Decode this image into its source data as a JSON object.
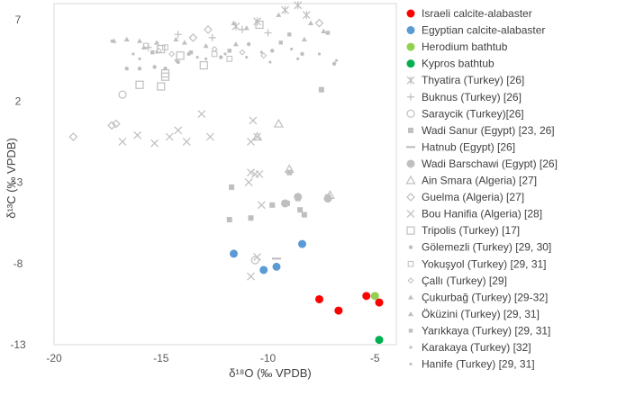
{
  "chart_data": {
    "type": "scatter",
    "title": "",
    "xlabel": "δ¹⁸O (‰ VPDB)",
    "ylabel": "δ¹³C (‰ VPDB)",
    "xlim": [
      -20,
      -4
    ],
    "ylim": [
      -13,
      8
    ],
    "xticks": [
      -20,
      -15,
      -10,
      -5
    ],
    "yticks": [
      7,
      2,
      -3,
      -8,
      -13
    ],
    "grid": false,
    "legend_position": "right",
    "series": [
      {
        "name": "Israeli calcite-alabaster",
        "marker": "circle-filled",
        "color": "#ff0000",
        "points": [
          [
            -7.6,
            -10.2
          ],
          [
            -6.7,
            -10.9
          ],
          [
            -5.4,
            -10.0
          ],
          [
            -4.8,
            -10.4
          ]
        ]
      },
      {
        "name": "Egyptian calcite-alabaster",
        "marker": "circle-filled",
        "color": "#5b9bd5",
        "points": [
          [
            -11.6,
            -7.4
          ],
          [
            -10.2,
            -8.4
          ],
          [
            -9.6,
            -8.2
          ],
          [
            -8.4,
            -6.8
          ]
        ]
      },
      {
        "name": "Herodium bathtub",
        "marker": "circle-filled",
        "color": "#92d050",
        "points": [
          [
            -5.0,
            -10.0
          ]
        ]
      },
      {
        "name": "Kypros bathtub",
        "marker": "circle-filled",
        "color": "#00b050",
        "points": [
          [
            -4.8,
            -12.7
          ]
        ]
      },
      {
        "name": "Thyatira (Turkey) [26]",
        "marker": "asterisk",
        "color": "#bfbfbf",
        "points": [
          [
            -11.5,
            6.6
          ],
          [
            -9.2,
            7.6
          ],
          [
            -8.2,
            7.3
          ],
          [
            -8.6,
            7.9
          ],
          [
            -10.5,
            6.9
          ]
        ]
      },
      {
        "name": "Buknus (Turkey) [26]",
        "marker": "plus",
        "color": "#bfbfbf",
        "points": [
          [
            -15.6,
            5.3
          ],
          [
            -14.2,
            6.1
          ],
          [
            -12.6,
            5.9
          ],
          [
            -11.2,
            6.4
          ],
          [
            -10.0,
            6.2
          ]
        ]
      },
      {
        "name": "Saraycik (Turkey)[26]",
        "marker": "circle-open",
        "color": "#bfbfbf",
        "points": [
          [
            -16.8,
            2.4
          ],
          [
            -10.6,
            -7.8
          ]
        ]
      },
      {
        "name": "Wadi Sanur (Egypt) [23, 26]",
        "marker": "square-filled",
        "color": "#bfbfbf",
        "points": [
          [
            -11.7,
            -3.3
          ],
          [
            -11.8,
            -5.3
          ],
          [
            -10.8,
            -5.2
          ],
          [
            -9.8,
            -4.4
          ],
          [
            -9.1,
            -4.3
          ],
          [
            -8.6,
            -4.0
          ],
          [
            -8.5,
            -4.7
          ],
          [
            -8.3,
            -5.0
          ],
          [
            -9.0,
            -2.4
          ],
          [
            -7.5,
            2.7
          ],
          [
            -7.2,
            -3.9
          ]
        ]
      },
      {
        "name": "Hatnub (Egypt) [26]",
        "marker": "dash",
        "color": "#bfbfbf",
        "points": [
          [
            -9.6,
            -7.7
          ]
        ]
      },
      {
        "name": "Wadi Barschawi (Egypt) [26]",
        "marker": "circle-filled",
        "color": "#bfbfbf",
        "points": [
          [
            -9.2,
            -4.3
          ],
          [
            -8.6,
            -3.9
          ],
          [
            -7.2,
            -4.0
          ]
        ]
      },
      {
        "name": "Ain Smara (Algeria) [27]",
        "marker": "triangle-open",
        "color": "#bfbfbf",
        "points": [
          [
            -10.5,
            -0.2
          ],
          [
            -9.5,
            0.6
          ],
          [
            -9.0,
            -2.2
          ],
          [
            -7.1,
            -3.8
          ]
        ]
      },
      {
        "name": "Guelma (Algeria) [27]",
        "marker": "diamond-open",
        "color": "#bfbfbf",
        "points": [
          [
            -19.1,
            -0.2
          ],
          [
            -17.3,
            0.5
          ],
          [
            -17.1,
            0.6
          ],
          [
            -13.5,
            5.9
          ],
          [
            -12.8,
            6.4
          ],
          [
            -7.6,
            6.8
          ]
        ]
      },
      {
        "name": "Bou Hanifia (Algeria) [28]",
        "marker": "x",
        "color": "#bfbfbf",
        "points": [
          [
            -16.8,
            -0.5
          ],
          [
            -16.1,
            -0.1
          ],
          [
            -15.3,
            -0.6
          ],
          [
            -14.6,
            -0.2
          ],
          [
            -14.2,
            0.2
          ],
          [
            -13.8,
            -0.5
          ],
          [
            -13.1,
            1.2
          ],
          [
            -12.7,
            -0.2
          ],
          [
            -10.8,
            -0.5
          ],
          [
            -10.7,
            0.8
          ],
          [
            -10.5,
            -0.2
          ],
          [
            -10.8,
            -2.4
          ],
          [
            -10.6,
            -2.5
          ],
          [
            -10.4,
            -2.5
          ],
          [
            -10.9,
            -3.0
          ],
          [
            -10.3,
            -4.4
          ],
          [
            -10.8,
            -8.8
          ],
          [
            -10.5,
            -7.6
          ]
        ]
      },
      {
        "name": "Tripolis (Turkey) [17]",
        "marker": "square-open",
        "color": "#bfbfbf",
        "points": [
          [
            -16.0,
            3.0
          ],
          [
            -15.0,
            2.9
          ],
          [
            -14.8,
            3.5
          ],
          [
            -14.8,
            3.7
          ],
          [
            -13.0,
            4.2
          ],
          [
            -15.0,
            5.2
          ],
          [
            -14.1,
            4.8
          ],
          [
            -10.4,
            6.7
          ]
        ]
      },
      {
        "name": "Gölemezli (Turkey) [29, 30]",
        "marker": "circle-small",
        "color": "#bfbfbf",
        "points": [
          [
            -16.6,
            4.0
          ],
          [
            -16.0,
            4.0
          ],
          [
            -15.3,
            4.1
          ],
          [
            -14.8,
            4.0
          ],
          [
            -14.2,
            4.4
          ],
          [
            -13.7,
            4.9
          ],
          [
            -12.2,
            4.7
          ],
          [
            -8.4,
            4.9
          ],
          [
            -6.9,
            4.3
          ],
          [
            -9.8,
            5.1
          ],
          [
            -10.9,
            5.5
          ]
        ]
      },
      {
        "name": "Yokuşyol (Turkey) [29, 31]",
        "marker": "square-open-small",
        "color": "#bfbfbf",
        "points": [
          [
            -15.7,
            5.4
          ],
          [
            -14.8,
            5.3
          ],
          [
            -12.5,
            4.9
          ],
          [
            -11.8,
            4.6
          ]
        ]
      },
      {
        "name": "Çallı (Turkey) [29]",
        "marker": "diamond-small",
        "color": "#bfbfbf",
        "points": [
          [
            -15.1,
            5.1
          ],
          [
            -14.5,
            4.9
          ],
          [
            -12.5,
            5.2
          ],
          [
            -11.2,
            5.0
          ],
          [
            -10.2,
            4.8
          ]
        ]
      },
      {
        "name": "Çukurbağ (Turkey) [29-32]",
        "marker": "triangle-small",
        "color": "#bfbfbf",
        "points": [
          [
            -17.2,
            5.7
          ],
          [
            -16.6,
            5.8
          ],
          [
            -16.0,
            5.7
          ],
          [
            -15.2,
            5.6
          ],
          [
            -14.3,
            5.8
          ],
          [
            -11.6,
            6.8
          ],
          [
            -11.0,
            6.5
          ],
          [
            -9.5,
            7.3
          ],
          [
            -8.0,
            6.8
          ],
          [
            -7.4,
            6.3
          ]
        ]
      },
      {
        "name": "Öküzini (Turkey) [29, 31]",
        "marker": "triangle-small",
        "color": "#bfbfbf",
        "points": [
          [
            -15.8,
            5.3
          ],
          [
            -13.9,
            5.6
          ],
          [
            -12.9,
            5.4
          ],
          [
            -11.5,
            5.5
          ],
          [
            -8.3,
            5.8
          ]
        ]
      },
      {
        "name": "Yarıkkaya (Turkey) [29, 31]",
        "marker": "square-small",
        "color": "#bfbfbf",
        "points": [
          [
            -15.4,
            5.0
          ],
          [
            -13.6,
            5.0
          ],
          [
            -11.8,
            5.1
          ],
          [
            -9.0,
            6.1
          ],
          [
            -7.2,
            6.2
          ],
          [
            -9.4,
            5.6
          ]
        ]
      },
      {
        "name": "Karakaya (Turkey) [32]",
        "marker": "dot",
        "color": "#bfbfbf",
        "points": [
          [
            -17.3,
            5.7
          ],
          [
            -16.3,
            4.9
          ],
          [
            -15.2,
            5.0
          ],
          [
            -13.3,
            4.7
          ],
          [
            -12.0,
            4.9
          ],
          [
            -10.3,
            5.0
          ],
          [
            -8.6,
            4.6
          ],
          [
            -6.8,
            4.5
          ]
        ]
      },
      {
        "name": "Hanife (Turkey) [29, 31]",
        "marker": "dot",
        "color": "#bfbfbf",
        "points": [
          [
            -16.0,
            4.6
          ],
          [
            -14.3,
            4.5
          ],
          [
            -12.9,
            4.6
          ],
          [
            -11.0,
            4.7
          ],
          [
            -9.9,
            4.4
          ],
          [
            -8.9,
            5.2
          ],
          [
            -7.6,
            4.9
          ]
        ]
      }
    ]
  }
}
